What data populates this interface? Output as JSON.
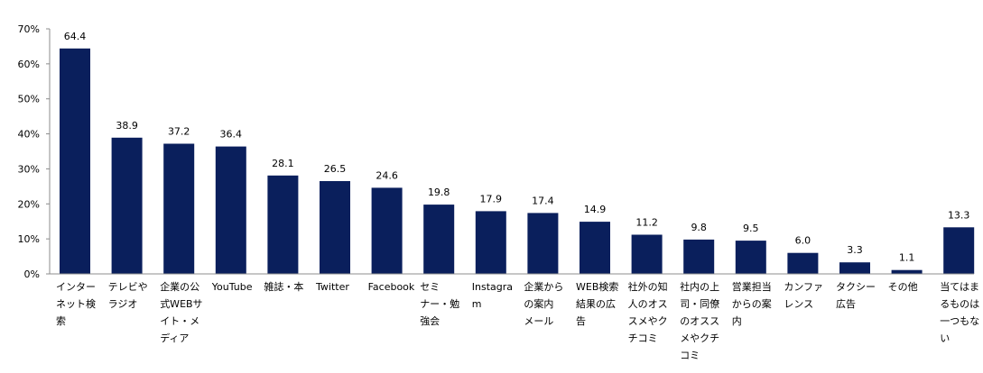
{
  "chart_data": {
    "type": "bar",
    "title": "",
    "xlabel": "",
    "ylabel": "",
    "ylim": [
      0,
      70
    ],
    "yticks": [
      0,
      10,
      20,
      30,
      40,
      50,
      60,
      70
    ],
    "ytick_labels": [
      "0%",
      "10%",
      "20%",
      "30%",
      "40%",
      "50%",
      "60%",
      "70%"
    ],
    "grid": false,
    "bar_color": "#0a1f5c",
    "categories": [
      [
        "インター",
        "ネット検",
        "索"
      ],
      [
        "テレビや",
        "ラジオ"
      ],
      [
        "企業の公",
        "式WEBサ",
        "イト・メ",
        "ディア"
      ],
      [
        "YouTube"
      ],
      [
        "雑誌・本"
      ],
      [
        "Twitter"
      ],
      [
        "Facebook"
      ],
      [
        "セミ",
        "ナー・勉",
        "強会"
      ],
      [
        "Instagra",
        "m"
      ],
      [
        "企業から",
        "の案内",
        "メール"
      ],
      [
        "WEB検索",
        "結果の広",
        "告"
      ],
      [
        "社外の知",
        "人のオス",
        "スメやク",
        "チコミ"
      ],
      [
        "社内の上",
        "司・同僚",
        "のオスス",
        "メやクチ",
        "コミ"
      ],
      [
        "営業担当",
        "からの案",
        "内"
      ],
      [
        "カンファ",
        "レンス"
      ],
      [
        "タクシー",
        "広告"
      ],
      [
        "その他"
      ],
      [
        "当てはま",
        "るものは",
        "一つもな",
        "い"
      ]
    ],
    "values": [
      64.4,
      38.9,
      37.2,
      36.4,
      28.1,
      26.5,
      24.6,
      19.8,
      17.9,
      17.4,
      14.9,
      11.2,
      9.8,
      9.5,
      6.0,
      3.3,
      1.1,
      13.3
    ],
    "value_labels": [
      "64.4",
      "38.9",
      "37.2",
      "36.4",
      "28.1",
      "26.5",
      "24.6",
      "19.8",
      "17.9",
      "17.4",
      "14.9",
      "11.2",
      "9.8",
      "9.5",
      "6.0",
      "3.3",
      "1.1",
      "13.3"
    ]
  }
}
